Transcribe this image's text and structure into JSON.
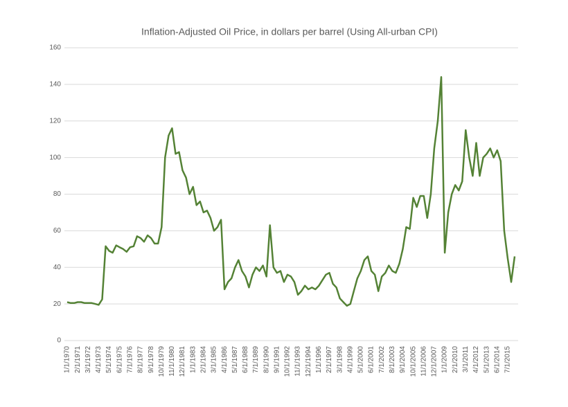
{
  "chart_data": {
    "type": "line",
    "title": "Inflation-Adjusted Oil Price, in dollars per barrel (Using All-urban CPI)",
    "categories": [
      "1/1/1970",
      null,
      null,
      "2/1/1971",
      null,
      null,
      "3/1/1972",
      null,
      null,
      "4/1/1973",
      null,
      null,
      "5/1/1974",
      null,
      null,
      "6/1/1975",
      null,
      null,
      "7/1/1976",
      null,
      null,
      "8/1/1977",
      null,
      null,
      "9/1/1978",
      null,
      null,
      "10/1/1979",
      null,
      null,
      "11/1/1980",
      null,
      null,
      "12/1/1981",
      null,
      null,
      "1/1/1983",
      null,
      null,
      "2/1/1984",
      null,
      null,
      "3/1/1985",
      null,
      null,
      "4/1/1986",
      null,
      null,
      "5/1/1987",
      null,
      null,
      "6/1/1988",
      null,
      null,
      "7/1/1989",
      null,
      null,
      "8/1/1990",
      null,
      null,
      "9/1/1991",
      null,
      null,
      "10/1/1992",
      null,
      null,
      "11/1/1993",
      null,
      null,
      "12/1/1994",
      null,
      null,
      "1/1/1996",
      null,
      null,
      "2/1/1997",
      null,
      null,
      "3/1/1998",
      null,
      null,
      "4/1/1999",
      null,
      null,
      "5/1/2000",
      null,
      null,
      "6/1/2001",
      null,
      null,
      "7/1/2002",
      null,
      null,
      "8/1/2003",
      null,
      null,
      "9/1/2004",
      null,
      null,
      "10/1/2005",
      null,
      null,
      "11/1/2006",
      null,
      null,
      "12/1/2007",
      null,
      null,
      "1/1/2009",
      null,
      null,
      "2/1/2010",
      null,
      null,
      "3/1/2011",
      null,
      null,
      "4/1/2012",
      null,
      null,
      "5/1/2013",
      null,
      null,
      "6/1/2014",
      null,
      null,
      "7/1/2015",
      null,
      null
    ],
    "values": [
      21,
      20.5,
      20.5,
      21,
      21,
      20.5,
      20.5,
      20.5,
      20,
      19.5,
      22.5,
      51.5,
      49,
      48,
      52,
      51,
      50,
      48.5,
      51,
      51.5,
      57,
      56,
      54,
      57.5,
      56,
      53,
      53,
      62,
      100,
      112,
      116,
      102,
      103,
      93,
      89,
      80,
      84,
      74,
      76,
      70,
      71,
      67,
      60,
      62,
      66,
      28,
      32,
      34,
      40,
      44,
      38,
      35,
      29,
      36,
      40,
      38,
      41,
      35,
      63,
      40,
      37,
      38,
      32,
      36,
      35,
      32,
      25,
      27,
      30,
      28,
      29,
      28,
      30,
      33,
      36,
      37,
      31,
      29,
      23,
      21,
      19,
      20,
      27,
      34,
      38,
      44,
      46,
      38,
      36,
      27,
      35,
      37,
      41,
      38,
      37,
      42,
      50,
      62,
      61,
      78,
      73,
      79,
      79,
      67,
      80,
      105,
      120,
      144,
      48,
      70,
      80,
      85,
      82,
      87,
      115,
      100,
      90,
      108,
      90,
      100,
      102,
      105,
      100,
      104,
      98,
      60,
      45,
      32,
      46
    ],
    "color": "#548235",
    "ylim": [
      0,
      160
    ],
    "yticks": [
      0,
      20,
      40,
      60,
      80,
      100,
      120,
      140,
      160
    ],
    "grid": true
  }
}
